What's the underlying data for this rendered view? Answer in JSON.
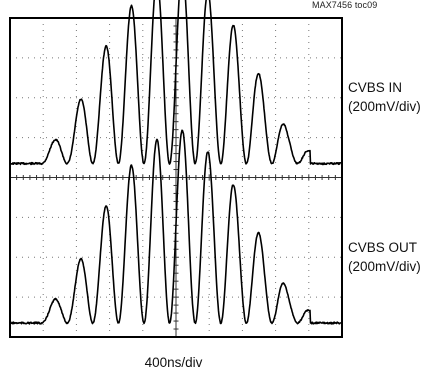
{
  "chart_id": "MAX7456 toc09",
  "chart_data": {
    "type": "line",
    "title": "",
    "grid": true,
    "x_divisions": 10,
    "y_divisions": 8,
    "x_scale": "400ns/div",
    "series": [
      {
        "name": "CVBS IN",
        "scale": "(200mV/div)",
        "baseline_div": 4.35,
        "peak_envelope_div": [
          0.3,
          0.8,
          1.9,
          3.1,
          3.95,
          4.55,
          4.95,
          4.55,
          3.95,
          3.1,
          1.9,
          0.8,
          0.3
        ]
      },
      {
        "name": "CVBS OUT",
        "scale": "(200mV/div)",
        "baseline_div": 0.35,
        "peak_envelope_div": [
          0.3,
          0.8,
          1.9,
          3.1,
          3.95,
          4.55,
          4.95,
          4.55,
          3.95,
          3.1,
          1.9,
          0.8,
          0.3
        ]
      }
    ]
  },
  "labels": {
    "in_name": "CVBS IN",
    "in_scale": "(200mV/div)",
    "out_name": "CVBS OUT",
    "out_scale": "(200mV/div)",
    "timebase": "400ns/div"
  }
}
